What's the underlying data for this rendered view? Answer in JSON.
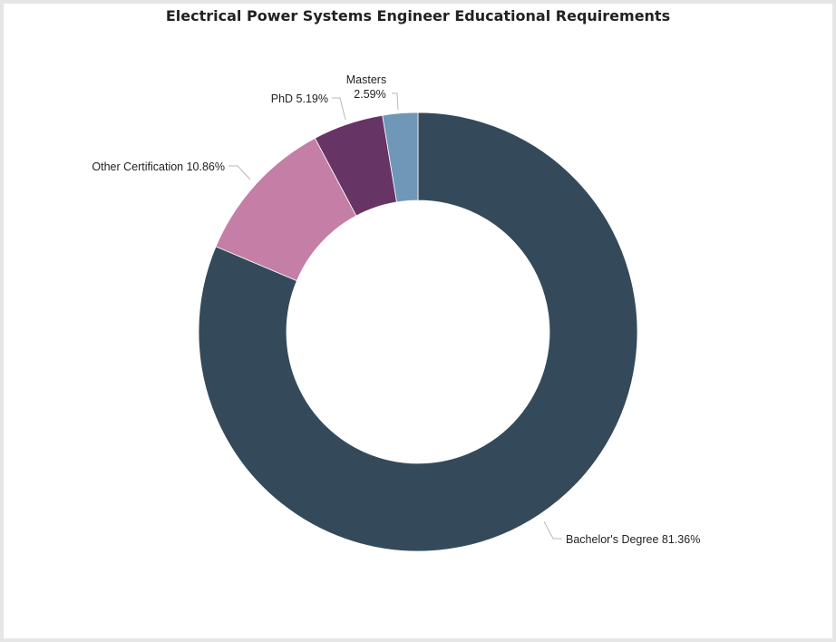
{
  "chart_data": {
    "type": "pie",
    "title": "Electrical Power Systems Engineer Educational Requirements",
    "donut": true,
    "slices": [
      {
        "label": "Bachelor's Degree",
        "value": 81.36,
        "value_label": "81.36%",
        "color": "#344a5a"
      },
      {
        "label": "Other Certification",
        "value": 10.86,
        "value_label": "10.86%",
        "color": "#c57ea6"
      },
      {
        "label": "PhD",
        "value": 5.19,
        "value_label": "5.19%",
        "color": "#663465"
      },
      {
        "label": "Masters",
        "value": 2.59,
        "value_label": "2.59%",
        "color": "#7097b7"
      }
    ]
  }
}
